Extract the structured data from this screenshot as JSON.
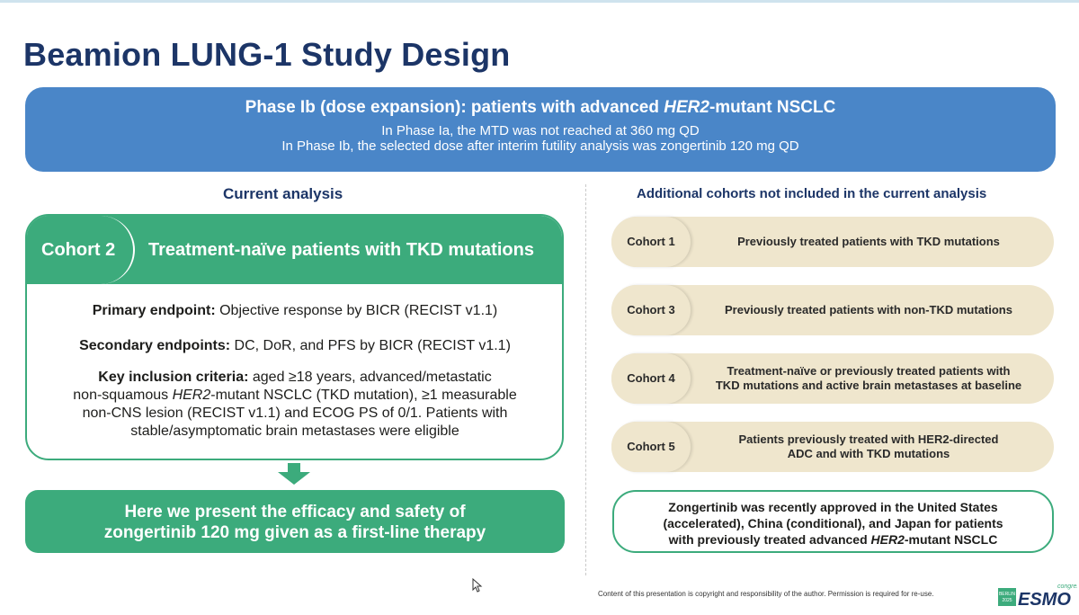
{
  "title": "Beamion LUNG-1 Study Design",
  "phase": {
    "title_prefix": "Phase Ib (dose expansion): patients with advanced ",
    "title_italic": "HER2",
    "title_suffix": "-mutant NSCLC",
    "line1": "In Phase Ia, the MTD was not reached at 360 mg QD",
    "line2": "In Phase Ib, the selected dose after interim futility analysis was zongertinib 120 mg QD"
  },
  "left": {
    "section_title": "Current analysis",
    "cohort_label": "Cohort 2",
    "cohort_heading": "Treatment-naïve patients with TKD mutations",
    "primary_label": "Primary endpoint:",
    "primary_text": " Objective response by BICR (RECIST v1.1)",
    "secondary_label": "Secondary endpoints:",
    "secondary_text": " DC, DoR, and PFS by BICR (RECIST v1.1)",
    "key_label": "Key inclusion criteria:",
    "key_text1": " aged ≥18 years, advanced/metastatic",
    "key_text2a": "non-squamous ",
    "key_text2_italic": "HER2",
    "key_text2b": "-mutant NSCLC (TKD mutation), ≥1 measurable",
    "key_text3": "non-CNS lesion (RECIST v1.1) and ECOG PS of 0/1. Patients with",
    "key_text4": "stable/asymptomatic brain metastases were eligible",
    "present_line1": "Here we present the efficacy and safety of",
    "present_line2": "zongertinib 120 mg given as a first-line therapy"
  },
  "right": {
    "section_title": "Additional cohorts not included in the current analysis",
    "cohorts": [
      {
        "label": "Cohort 1",
        "line1": "Previously treated patients with TKD mutations",
        "line2": ""
      },
      {
        "label": "Cohort 3",
        "line1": "Previously treated patients with non-TKD mutations",
        "line2": ""
      },
      {
        "label": "Cohort 4",
        "line1": "Treatment-naïve or previously treated patients with",
        "line2": "TKD mutations and active brain metastases at baseline"
      },
      {
        "label": "Cohort 5",
        "line1": "Patients previously treated with HER2-directed",
        "line2": "ADC and with TKD mutations"
      }
    ],
    "approved_line1": "Zongertinib was recently approved in the United States",
    "approved_line2": "(accelerated), China (conditional), and Japan for patients",
    "approved_line3a": "with previously treated advanced ",
    "approved_line3_italic": "HER2",
    "approved_line3b": "-mutant NSCLC"
  },
  "footer": {
    "note": "Content of this presentation is copyright and responsibility of the author. Permission is required for re-use.",
    "logo_text": "ESMO",
    "logo_sub": "congress",
    "logo_city": "BERLIN 2025"
  },
  "colors": {
    "title": "#1c3567",
    "phase_blue": "#4a86c8",
    "green": "#3cab7c",
    "beige": "#efe6cd"
  }
}
